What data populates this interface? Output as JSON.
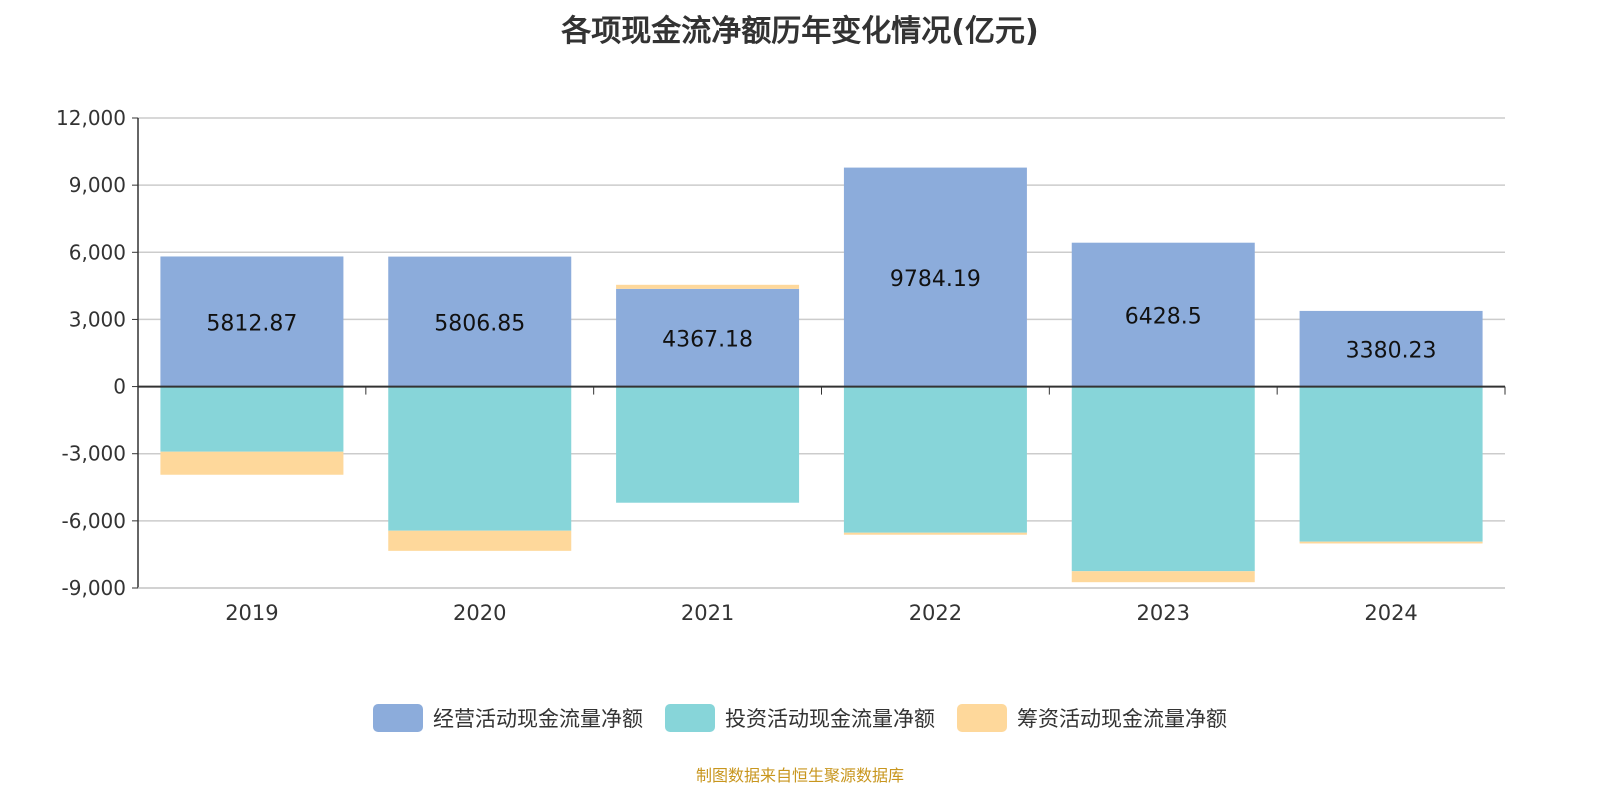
{
  "chart_data": {
    "type": "bar",
    "stacked": true,
    "title": "各项现金流净额历年变化情况(亿元)",
    "categories": [
      "2019",
      "2020",
      "2021",
      "2022",
      "2023",
      "2024"
    ],
    "series": [
      {
        "name": "经营活动现金流量净额",
        "color": "#8cacdb",
        "values": [
          5812.87,
          5806.85,
          4367.18,
          9784.19,
          6428.5,
          3380.23
        ],
        "labels": [
          "5812.87",
          "5806.85",
          "4367.18",
          "9784.19",
          "6428.5",
          "3380.23"
        ]
      },
      {
        "name": "投资活动现金流量净额",
        "color": "#87d5d9",
        "values": [
          -2910,
          -6440,
          -5190,
          -6530,
          -8250,
          -6930
        ]
      },
      {
        "name": "筹资活动现金流量净额",
        "color": "#fed89b",
        "values": [
          -1030,
          -900,
          180,
          -90,
          -490,
          -80
        ]
      }
    ],
    "ylim": [
      -9000,
      12000
    ],
    "yticks": [
      12000,
      9000,
      6000,
      3000,
      0,
      -3000,
      -6000,
      -9000
    ],
    "ytick_labels": [
      "12,000",
      "9,000",
      "6,000",
      "3,000",
      "0",
      "-3,000",
      "-6,000",
      "-9,000"
    ],
    "grid": true,
    "legend": "bottom"
  },
  "source": "制图数据来自恒生聚源数据库"
}
